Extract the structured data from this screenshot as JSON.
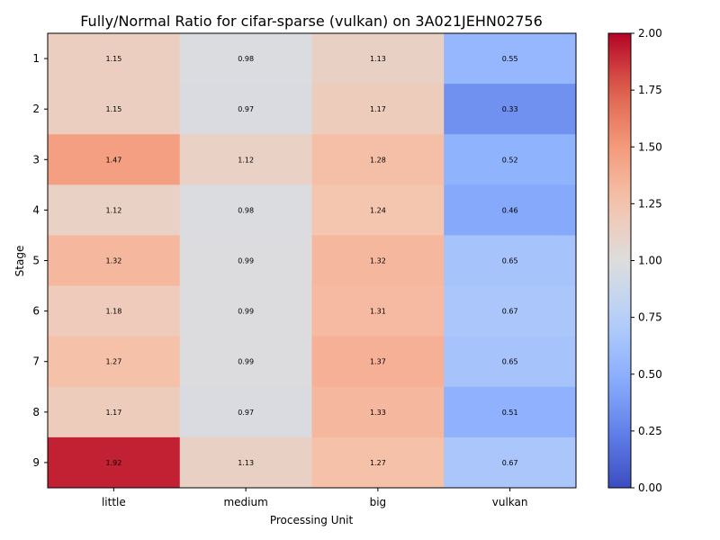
{
  "chart_data": {
    "type": "heatmap",
    "title": "Fully/Normal Ratio for cifar-sparse (vulkan) on 3A021JEHN02756",
    "xlabel": "Processing Unit",
    "ylabel": "Stage",
    "columns": [
      "little",
      "medium",
      "big",
      "vulkan"
    ],
    "rows": [
      "1",
      "2",
      "3",
      "4",
      "5",
      "6",
      "7",
      "8",
      "9"
    ],
    "values": [
      [
        1.15,
        0.98,
        1.13,
        0.55
      ],
      [
        1.15,
        0.97,
        1.17,
        0.33
      ],
      [
        1.47,
        1.12,
        1.28,
        0.52
      ],
      [
        1.12,
        0.98,
        1.24,
        0.46
      ],
      [
        1.32,
        0.99,
        1.32,
        0.65
      ],
      [
        1.18,
        0.99,
        1.31,
        0.67
      ],
      [
        1.27,
        0.99,
        1.37,
        0.65
      ],
      [
        1.17,
        0.97,
        1.33,
        0.51
      ],
      [
        1.92,
        1.13,
        1.27,
        0.67
      ]
    ],
    "colorbar": {
      "colormap": "coolwarm",
      "vmin": 0.0,
      "vmax": 2.0,
      "ticks": [
        "0.00",
        "0.25",
        "0.50",
        "0.75",
        "1.00",
        "1.25",
        "1.50",
        "1.75",
        "2.00"
      ]
    },
    "grid": false
  }
}
